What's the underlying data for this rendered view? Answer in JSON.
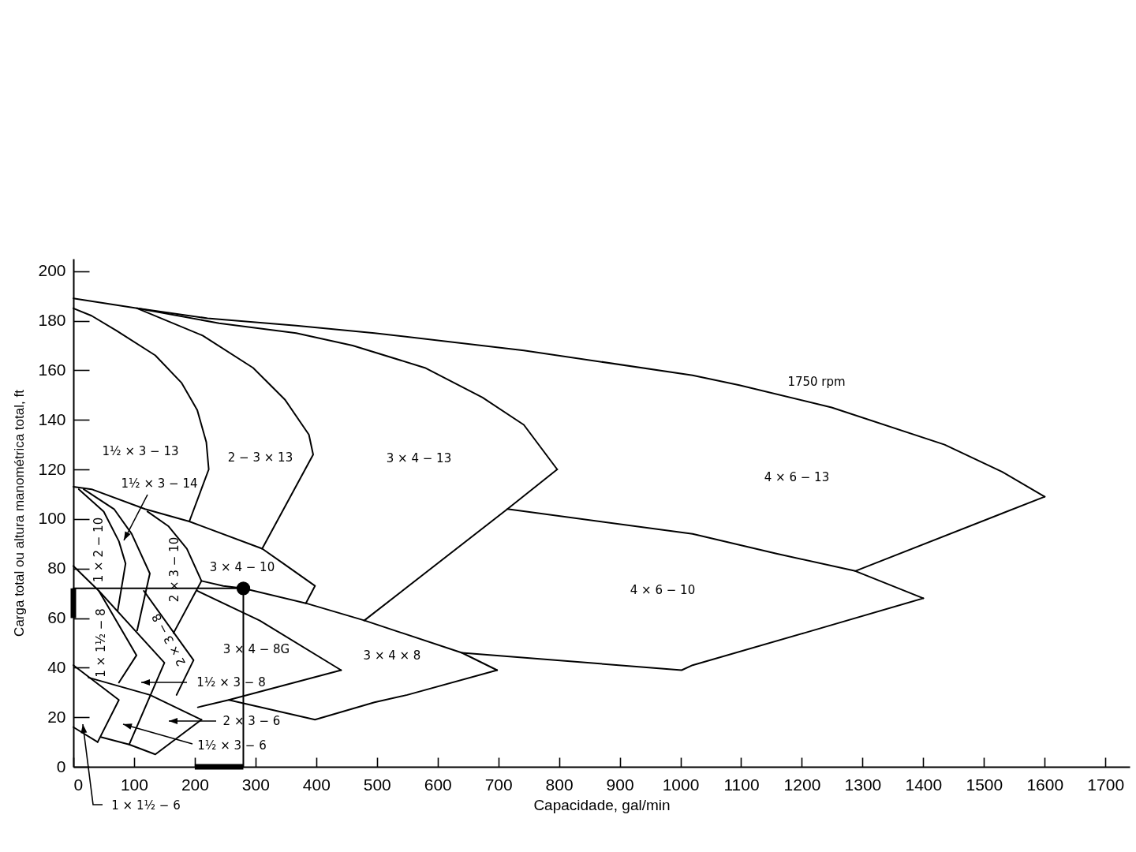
{
  "chart_data": {
    "type": "line",
    "xlabel": "Capacidade, gal/min",
    "ylabel": "Carga total ou altura manométrica total, ft",
    "xlim": [
      0,
      1740
    ],
    "ylim": [
      0,
      205
    ],
    "xticks": [
      0,
      100,
      200,
      300,
      400,
      500,
      600,
      700,
      800,
      900,
      1000,
      1100,
      1200,
      1300,
      1400,
      1500,
      1600,
      1700
    ],
    "yticks": [
      0,
      20,
      40,
      60,
      80,
      100,
      120,
      140,
      160,
      180,
      200
    ],
    "series": [
      {
        "color": "#000000",
        "x": [
          0,
          105,
          221,
          367,
          496,
          742,
          1020,
          1097,
          1249,
          1435,
          1530,
          1600
        ],
        "values": [
          189,
          185,
          181,
          178,
          175,
          168,
          158,
          154,
          145,
          130,
          119,
          109
        ]
      },
      {
        "color": "#000000",
        "x": [
          1600,
          1288
        ],
        "values": [
          109,
          79
        ]
      },
      {
        "color": "#000000",
        "x": [
          715,
          1020,
          1158,
          1288,
          1400
        ],
        "values": [
          104,
          94,
          86,
          79,
          68
        ]
      },
      {
        "color": "#000000",
        "x": [
          1400,
          1204,
          1020,
          1002,
          640
        ],
        "values": [
          68,
          54,
          41,
          39,
          46
        ]
      },
      {
        "color": "#000000",
        "x": [
          105,
          240,
          367,
          460,
          579,
          674,
          742,
          797
        ],
        "values": [
          185,
          179,
          175,
          170,
          161,
          149,
          138,
          120
        ]
      },
      {
        "color": "#000000",
        "x": [
          797,
          715,
          479
        ],
        "values": [
          120,
          104,
          59
        ]
      },
      {
        "color": "#000000",
        "x": [
          105,
          213,
          296,
          349,
          388,
          395,
          311
        ],
        "values": [
          185,
          174,
          161,
          148,
          134,
          126,
          88
        ]
      },
      {
        "color": "#000000",
        "x": [
          0,
          30,
          71,
          135,
          178,
          204,
          219,
          223,
          191
        ],
        "values": [
          185,
          182,
          176,
          166,
          155,
          144,
          131,
          120,
          99
        ]
      },
      {
        "color": "#000000",
        "x": [
          0,
          30,
          118,
          191,
          311,
          346,
          398,
          383
        ],
        "values": [
          113,
          112,
          104,
          99,
          88,
          82,
          73,
          66
        ]
      },
      {
        "color": "#000000",
        "x": [
          9,
          50,
          75,
          86,
          73
        ],
        "values": [
          112,
          103,
          91,
          82,
          63
        ]
      },
      {
        "color": "#000000",
        "x": [
          17,
          67,
          96,
          126,
          105
        ],
        "values": [
          112,
          104,
          94,
          78,
          55
        ]
      },
      {
        "color": "#000000",
        "x": [
          122,
          157,
          187,
          211,
          165
        ],
        "values": [
          103,
          97,
          88,
          75,
          54
        ]
      },
      {
        "color": "#000000",
        "x": [
          211,
          247,
          280,
          383,
          480,
          640,
          698
        ],
        "values": [
          75,
          73,
          72,
          66,
          59,
          46,
          39
        ]
      },
      {
        "color": "#000000",
        "x": [
          204,
          307,
          441
        ],
        "values": [
          71,
          59,
          39
        ]
      },
      {
        "color": "#000000",
        "x": [
          441,
          256,
          205
        ],
        "values": [
          39,
          27,
          24
        ]
      },
      {
        "color": "#000000",
        "x": [
          256,
          398,
          496,
          550,
          698
        ],
        "values": [
          27,
          19,
          26,
          29,
          39
        ]
      },
      {
        "color": "#000000",
        "x": [
          0,
          42,
          104,
          75
        ],
        "values": [
          81,
          71,
          45,
          34
        ]
      },
      {
        "color": "#000000",
        "x": [
          42,
          150,
          92
        ],
        "values": [
          71,
          42,
          9
        ]
      },
      {
        "color": "#000000",
        "x": [
          116,
          198,
          170
        ],
        "values": [
          71,
          43,
          29
        ]
      },
      {
        "color": "#000000",
        "x": [
          0,
          75,
          40
        ],
        "values": [
          41,
          27,
          10
        ]
      },
      {
        "color": "#000000",
        "x": [
          0,
          40
        ],
        "values": [
          16,
          10
        ]
      },
      {
        "color": "#000000",
        "x": [
          25,
          126,
          211
        ],
        "values": [
          36,
          29,
          19
        ]
      },
      {
        "color": "#000000",
        "x": [
          45,
          92,
          135,
          211
        ],
        "values": [
          12,
          9,
          5,
          19
        ]
      },
      {
        "color": "#000000",
        "x": [
          0,
          280,
          280
        ],
        "values": [
          72,
          72,
          0
        ]
      },
      {
        "color": "#000000",
        "x": [
          200,
          280
        ],
        "values": [
          0,
          0
        ]
      },
      {
        "color": "#000000",
        "x": [
          0,
          0
        ],
        "values": [
          60,
          72
        ]
      },
      {
        "type": "scatter",
        "marker": "circle",
        "color": "#000000",
        "x": [
          280
        ],
        "values": [
          72
        ]
      }
    ],
    "annotations": [
      "1750 rpm",
      "4 × 6 − 13",
      "3 × 4 − 13",
      "2 − 3 × 13",
      "1½ × 3 − 13",
      "1½ × 3 − 14",
      "1 × 2 − 10",
      "2 × 3 − 10",
      "3 × 4 − 10",
      "1 × 1½ − 8",
      "2 × 3 − 8",
      "3 × 4 − 8G",
      "3 × 4 × 8",
      "4 × 6 − 10",
      "1½ × 3 − 8",
      "2 × 3 − 6",
      "1½ × 3 − 6",
      "1 × 1½ − 6"
    ]
  }
}
